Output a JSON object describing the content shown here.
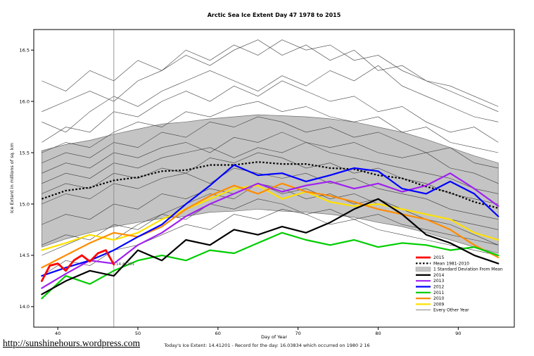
{
  "page": {
    "title": "Arctic Sea Ice Extent Day 47 1978 to 2015",
    "x_axis_label": "Day of Year",
    "y_axis_label": "Ice Extent in millions of sq. km",
    "footer_caption": "Today's Ice Extent: 14.41201  - Record for the day: 16.03834 which occurred on 1980 2 16",
    "footer_link": "http://sunshinehours.wordpress.com",
    "annotation": "14.41201"
  },
  "chart_data": {
    "type": "line",
    "title": "Arctic Sea Ice Extent Day 47 1978 to 2015",
    "xlabel": "Day of Year",
    "ylabel": "Ice Extent in millions of sq. km",
    "xlim": [
      37,
      97
    ],
    "ylim": [
      13.8,
      16.7
    ],
    "x_ticks": [
      40,
      50,
      60,
      70,
      80,
      90
    ],
    "y_ticks": [
      14.0,
      14.5,
      15.0,
      15.5,
      16.0,
      16.5
    ],
    "grid": false,
    "legend_position": "center-right",
    "vline_day": 47,
    "today_value": 14.41201,
    "record_value": 16.03834,
    "record_date": "1980 2 16",
    "band": {
      "label": "1 Standard Deviation From Mean",
      "color": "#c4c4c4",
      "edge": "#6e6e6e",
      "x": [
        38,
        41,
        44,
        47,
        50,
        53,
        56,
        59,
        62,
        65,
        68,
        71,
        74,
        77,
        80,
        83,
        86,
        89,
        92,
        95
      ],
      "upper": [
        15.52,
        15.58,
        15.62,
        15.68,
        15.73,
        15.78,
        15.8,
        15.83,
        15.85,
        15.87,
        15.86,
        15.85,
        15.83,
        15.8,
        15.75,
        15.7,
        15.63,
        15.55,
        15.47,
        15.4
      ],
      "lower": [
        14.58,
        14.66,
        14.72,
        14.78,
        14.82,
        14.86,
        14.88,
        14.92,
        14.93,
        14.95,
        14.93,
        14.92,
        14.9,
        14.87,
        14.82,
        14.78,
        14.72,
        14.65,
        14.58,
        14.52
      ]
    },
    "mean": {
      "label": "Mean 1981-2010",
      "color": "#000000",
      "width": 2.2,
      "dash": "2.5,2.5",
      "x": [
        38,
        41,
        44,
        47,
        50,
        53,
        56,
        59,
        62,
        65,
        68,
        71,
        74,
        77,
        80,
        83,
        86,
        89,
        92,
        95
      ],
      "values": [
        15.05,
        15.13,
        15.16,
        15.23,
        15.26,
        15.32,
        15.33,
        15.38,
        15.38,
        15.41,
        15.39,
        15.39,
        15.35,
        15.34,
        15.28,
        15.25,
        15.17,
        15.11,
        15.02,
        14.96
      ]
    },
    "series": [
      {
        "name": "2009",
        "color": "#ffe100",
        "width": 2.2,
        "x": [
          38,
          41,
          44,
          47,
          50,
          53,
          56,
          59,
          62,
          65,
          68,
          71,
          74,
          77,
          80,
          83,
          86,
          89,
          92,
          95
        ],
        "values": [
          14.55,
          14.62,
          14.7,
          14.65,
          14.72,
          14.85,
          14.95,
          15.05,
          15.15,
          15.18,
          15.05,
          15.12,
          15.02,
          14.98,
          15.0,
          14.95,
          14.9,
          14.85,
          14.72,
          14.65
        ]
      },
      {
        "name": "2010",
        "color": "#ff8c00",
        "width": 2.2,
        "x": [
          38,
          41,
          44,
          47,
          50,
          53,
          56,
          59,
          62,
          65,
          68,
          71,
          74,
          77,
          80,
          83,
          86,
          89,
          92,
          95
        ],
        "values": [
          14.38,
          14.5,
          14.62,
          14.72,
          14.68,
          14.78,
          14.95,
          15.08,
          15.18,
          15.1,
          15.2,
          15.12,
          15.08,
          15.02,
          14.95,
          14.9,
          14.85,
          14.75,
          14.6,
          14.48
        ]
      },
      {
        "name": "2011",
        "color": "#00cd00",
        "width": 2.2,
        "x": [
          38,
          41,
          44,
          47,
          50,
          53,
          56,
          59,
          62,
          65,
          68,
          71,
          74,
          77,
          80,
          83,
          86,
          89,
          92,
          95
        ],
        "values": [
          14.08,
          14.3,
          14.22,
          14.35,
          14.45,
          14.5,
          14.45,
          14.55,
          14.52,
          14.62,
          14.72,
          14.65,
          14.6,
          14.65,
          14.58,
          14.62,
          14.6,
          14.55,
          14.58,
          14.5
        ]
      },
      {
        "name": "2013",
        "color": "#a020f0",
        "width": 2.2,
        "x": [
          38,
          41,
          44,
          47,
          50,
          53,
          56,
          59,
          62,
          65,
          68,
          71,
          74,
          77,
          80,
          83,
          86,
          89,
          92,
          95
        ],
        "values": [
          14.18,
          14.32,
          14.45,
          14.42,
          14.6,
          14.72,
          14.88,
          15.0,
          15.1,
          15.2,
          15.12,
          15.18,
          15.22,
          15.15,
          15.2,
          15.12,
          15.18,
          15.3,
          15.15,
          14.98
        ]
      },
      {
        "name": "2012",
        "color": "#0000ff",
        "width": 2.2,
        "x": [
          38,
          41,
          44,
          47,
          50,
          53,
          56,
          59,
          62,
          65,
          68,
          71,
          74,
          77,
          80,
          83,
          86,
          89,
          92,
          95
        ],
        "values": [
          14.3,
          14.38,
          14.45,
          14.55,
          14.68,
          14.8,
          15.0,
          15.18,
          15.38,
          15.28,
          15.3,
          15.22,
          15.28,
          15.35,
          15.32,
          15.15,
          15.1,
          15.22,
          15.1,
          14.88
        ]
      },
      {
        "name": "2014",
        "color": "#000000",
        "width": 2.2,
        "x": [
          38,
          41,
          44,
          47,
          50,
          53,
          56,
          59,
          62,
          65,
          68,
          71,
          74,
          77,
          80,
          83,
          86,
          89,
          92,
          95
        ],
        "values": [
          14.12,
          14.25,
          14.35,
          14.3,
          14.55,
          14.45,
          14.65,
          14.6,
          14.75,
          14.7,
          14.78,
          14.72,
          14.82,
          14.95,
          15.05,
          14.9,
          14.7,
          14.62,
          14.5,
          14.42
        ]
      },
      {
        "name": "2015",
        "color": "#ff0000",
        "width": 2.8,
        "x": [
          38,
          39,
          40,
          41,
          42,
          43,
          44,
          45,
          46,
          47
        ],
        "values": [
          14.25,
          14.4,
          14.42,
          14.35,
          14.45,
          14.5,
          14.44,
          14.52,
          14.55,
          14.41
        ]
      }
    ],
    "background": {
      "label": "Every Other Year",
      "color": "#3c3c3c",
      "width": 0.6,
      "x": [
        38,
        41,
        44,
        47,
        50,
        53,
        56,
        59,
        62,
        65,
        68,
        71,
        74,
        77,
        80,
        83,
        86,
        89,
        92,
        95
      ],
      "series": [
        [
          15.9,
          16.0,
          16.1,
          16.0,
          16.2,
          16.3,
          16.45,
          16.35,
          16.5,
          16.6,
          16.45,
          16.55,
          16.4,
          16.5,
          16.3,
          16.35,
          16.2,
          16.1,
          16.0,
          15.9
        ],
        [
          15.6,
          15.75,
          15.7,
          15.9,
          15.85,
          16.0,
          16.1,
          16.0,
          16.15,
          16.05,
          16.2,
          16.1,
          16.0,
          16.05,
          15.9,
          15.95,
          15.8,
          15.7,
          15.75,
          15.6
        ],
        [
          15.8,
          15.7,
          15.9,
          16.05,
          15.95,
          16.1,
          16.2,
          16.3,
          16.2,
          16.1,
          16.25,
          16.15,
          16.3,
          16.2,
          16.35,
          16.15,
          16.05,
          15.95,
          15.85,
          15.8
        ],
        [
          15.5,
          15.6,
          15.55,
          15.7,
          15.8,
          15.75,
          15.9,
          15.85,
          15.95,
          16.0,
          15.9,
          15.95,
          15.85,
          15.8,
          15.85,
          15.7,
          15.75,
          15.6,
          15.55,
          15.5
        ],
        [
          15.4,
          15.5,
          15.45,
          15.6,
          15.55,
          15.7,
          15.65,
          15.8,
          15.75,
          15.85,
          15.8,
          15.7,
          15.75,
          15.65,
          15.7,
          15.6,
          15.5,
          15.55,
          15.4,
          15.35
        ],
        [
          15.3,
          15.4,
          15.35,
          15.5,
          15.45,
          15.55,
          15.6,
          15.5,
          15.65,
          15.6,
          15.7,
          15.6,
          15.55,
          15.6,
          15.5,
          15.45,
          15.5,
          15.35,
          15.3,
          15.2
        ],
        [
          15.2,
          15.3,
          15.25,
          15.4,
          15.35,
          15.45,
          15.5,
          15.55,
          15.45,
          15.55,
          15.5,
          15.6,
          15.5,
          15.45,
          15.4,
          15.35,
          15.3,
          15.25,
          15.15,
          15.1
        ],
        [
          15.1,
          15.2,
          15.15,
          15.3,
          15.25,
          15.35,
          15.3,
          15.45,
          15.4,
          15.5,
          15.45,
          15.35,
          15.4,
          15.3,
          15.35,
          15.25,
          15.2,
          15.1,
          15.05,
          15.0
        ],
        [
          15.0,
          15.1,
          15.05,
          15.2,
          15.15,
          15.25,
          15.3,
          15.2,
          15.35,
          15.3,
          15.25,
          15.3,
          15.2,
          15.25,
          15.15,
          15.1,
          15.05,
          14.95,
          14.9,
          14.85
        ],
        [
          14.8,
          14.9,
          14.85,
          15.0,
          14.95,
          15.1,
          15.05,
          15.15,
          15.1,
          15.2,
          15.15,
          15.05,
          15.1,
          15.0,
          15.05,
          14.95,
          14.9,
          14.85,
          14.8,
          14.75
        ],
        [
          14.6,
          14.7,
          14.65,
          14.8,
          14.75,
          14.9,
          14.85,
          15.0,
          14.95,
          15.05,
          15.0,
          14.9,
          14.95,
          14.85,
          14.9,
          14.8,
          14.75,
          14.7,
          14.65,
          14.6
        ],
        [
          14.3,
          14.45,
          14.4,
          14.55,
          14.6,
          14.7,
          14.8,
          14.75,
          14.9,
          14.85,
          14.95,
          14.9,
          14.8,
          14.85,
          14.75,
          14.7,
          14.65,
          14.6,
          14.55,
          14.5
        ],
        [
          16.2,
          16.1,
          16.3,
          16.2,
          16.4,
          16.3,
          16.5,
          16.4,
          16.55,
          16.45,
          16.6,
          16.5,
          16.55,
          16.4,
          16.45,
          16.3,
          16.2,
          16.15,
          16.05,
          15.95
        ],
        [
          14.5,
          14.6,
          14.7,
          14.65,
          14.8,
          14.9,
          15.0,
          15.1,
          15.05,
          15.2,
          15.1,
          15.15,
          15.05,
          15.1,
          15.0,
          14.95,
          14.85,
          14.8,
          14.7,
          14.6
        ]
      ]
    },
    "legend": [
      {
        "label": "2015",
        "swatch": "line",
        "color": "#ff0000",
        "width": 2.8
      },
      {
        "label": "Mean 1981-2010",
        "swatch": "line",
        "color": "#000000",
        "width": 2.2,
        "dash": "2.5,2.5"
      },
      {
        "label": "1 Standard Deviation From Mean",
        "swatch": "band",
        "color": "#c4c4c4"
      },
      {
        "label": "2014",
        "swatch": "line",
        "color": "#000000",
        "width": 2.2
      },
      {
        "label": "2013",
        "swatch": "line",
        "color": "#a020f0",
        "width": 2.2
      },
      {
        "label": "2012",
        "swatch": "line",
        "color": "#0000ff",
        "width": 2.2
      },
      {
        "label": "2011",
        "swatch": "line",
        "color": "#00cd00",
        "width": 2.2
      },
      {
        "label": "2010",
        "swatch": "line",
        "color": "#ff8c00",
        "width": 2.2
      },
      {
        "label": "2009",
        "swatch": "line",
        "color": "#ffe100",
        "width": 2.2
      },
      {
        "label": "Every Other Year",
        "swatch": "line",
        "color": "#3c3c3c",
        "width": 0.6
      }
    ]
  }
}
